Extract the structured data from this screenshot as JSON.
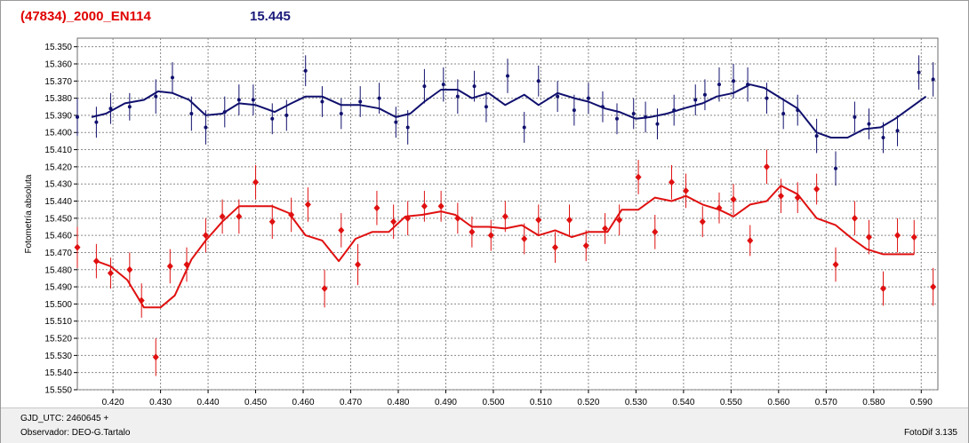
{
  "header": {
    "object_name": "(47834)_2000_EN114",
    "mean_magnitude": "15.445"
  },
  "footer": {
    "gjd_label": "GJD_UTC: 2460645 +",
    "observer_label": "Observador: DEO-G.Tartalo",
    "app_version": "FotoDif 3.135"
  },
  "colors": {
    "title_red": "#e00000",
    "blue_series": "#10106e",
    "red_series": "#e01010",
    "grid": "#8a8a8a"
  },
  "chart_data": {
    "type": "scatter",
    "ylabel": "Fotometría absoluta",
    "xlabel": "",
    "xlim": [
      0.4125,
      0.5935
    ],
    "ylim": [
      15.345,
      15.55
    ],
    "y_inverted": true,
    "grid": true,
    "x_ticks": [
      "0.420",
      "0.430",
      "0.440",
      "0.450",
      "0.460",
      "0.470",
      "0.480",
      "0.490",
      "0.500",
      "0.510",
      "0.520",
      "0.530",
      "0.540",
      "0.550",
      "0.560",
      "0.570",
      "0.580",
      "0.590"
    ],
    "y_ticks": [
      "15.350",
      "15.360",
      "15.370",
      "15.380",
      "15.390",
      "15.400",
      "15.410",
      "15.420",
      "15.430",
      "15.440",
      "15.450",
      "15.460",
      "15.470",
      "15.480",
      "15.490",
      "15.500",
      "15.510",
      "15.520",
      "15.530",
      "15.540",
      "15.550"
    ],
    "series": [
      {
        "color": "#10106e",
        "marker": "dot",
        "points": [
          [
            0.4125,
            15.391,
            0.011
          ],
          [
            0.4165,
            15.394,
            0.009
          ],
          [
            0.4195,
            15.386,
            0.009
          ],
          [
            0.4235,
            15.385,
            0.008
          ],
          [
            0.429,
            15.379,
            0.01
          ],
          [
            0.4325,
            15.368,
            0.009
          ],
          [
            0.4365,
            15.389,
            0.01
          ],
          [
            0.4395,
            15.397,
            0.01
          ],
          [
            0.4435,
            15.388,
            0.009
          ],
          [
            0.4465,
            15.381,
            0.009
          ],
          [
            0.4495,
            15.381,
            0.009
          ],
          [
            0.4535,
            15.392,
            0.009
          ],
          [
            0.4565,
            15.39,
            0.009
          ],
          [
            0.4605,
            15.364,
            0.009
          ],
          [
            0.464,
            15.382,
            0.009
          ],
          [
            0.468,
            15.389,
            0.009
          ],
          [
            0.472,
            15.382,
            0.009
          ],
          [
            0.476,
            15.38,
            0.009
          ],
          [
            0.4795,
            15.394,
            0.009
          ],
          [
            0.482,
            15.397,
            0.01
          ],
          [
            0.4855,
            15.373,
            0.01
          ],
          [
            0.4895,
            15.372,
            0.01
          ],
          [
            0.4925,
            15.379,
            0.01
          ],
          [
            0.496,
            15.373,
            0.009
          ],
          [
            0.4985,
            15.385,
            0.009
          ],
          [
            0.503,
            15.367,
            0.01
          ],
          [
            0.5065,
            15.397,
            0.009
          ],
          [
            0.5095,
            15.37,
            0.009
          ],
          [
            0.5135,
            15.379,
            0.009
          ],
          [
            0.517,
            15.387,
            0.009
          ],
          [
            0.52,
            15.38,
            0.009
          ],
          [
            0.523,
            15.385,
            0.009
          ],
          [
            0.526,
            15.392,
            0.009
          ],
          [
            0.5295,
            15.389,
            0.009
          ],
          [
            0.532,
            15.391,
            0.009
          ],
          [
            0.5345,
            15.395,
            0.009
          ],
          [
            0.538,
            15.387,
            0.009
          ],
          [
            0.5425,
            15.381,
            0.009
          ],
          [
            0.5445,
            15.378,
            0.009
          ],
          [
            0.5475,
            15.372,
            0.01
          ],
          [
            0.5505,
            15.37,
            0.01
          ],
          [
            0.5535,
            15.372,
            0.01
          ],
          [
            0.5575,
            15.38,
            0.009
          ],
          [
            0.561,
            15.389,
            0.009
          ],
          [
            0.564,
            15.387,
            0.009
          ],
          [
            0.568,
            15.402,
            0.01
          ],
          [
            0.572,
            15.421,
            0.01
          ],
          [
            0.576,
            15.391,
            0.009
          ],
          [
            0.579,
            15.395,
            0.009
          ],
          [
            0.582,
            15.403,
            0.009
          ],
          [
            0.585,
            15.399,
            0.009
          ],
          [
            0.5895,
            15.365,
            0.01
          ],
          [
            0.5925,
            15.369,
            0.01
          ]
        ],
        "fit": [
          [
            0.4155,
            15.391
          ],
          [
            0.4185,
            15.389
          ],
          [
            0.4225,
            15.383
          ],
          [
            0.4265,
            15.381
          ],
          [
            0.4295,
            15.376
          ],
          [
            0.4325,
            15.377
          ],
          [
            0.436,
            15.381
          ],
          [
            0.4395,
            15.39
          ],
          [
            0.443,
            15.389
          ],
          [
            0.4465,
            15.383
          ],
          [
            0.45,
            15.384
          ],
          [
            0.454,
            15.388
          ],
          [
            0.4575,
            15.383
          ],
          [
            0.4605,
            15.379
          ],
          [
            0.464,
            15.379
          ],
          [
            0.468,
            15.384
          ],
          [
            0.472,
            15.384
          ],
          [
            0.476,
            15.386
          ],
          [
            0.4795,
            15.391
          ],
          [
            0.4825,
            15.389
          ],
          [
            0.4855,
            15.382
          ],
          [
            0.489,
            15.375
          ],
          [
            0.4925,
            15.375
          ],
          [
            0.4955,
            15.38
          ],
          [
            0.499,
            15.377
          ],
          [
            0.5025,
            15.384
          ],
          [
            0.5065,
            15.378
          ],
          [
            0.5095,
            15.384
          ],
          [
            0.5135,
            15.377
          ],
          [
            0.517,
            15.38
          ],
          [
            0.52,
            15.382
          ],
          [
            0.5235,
            15.386
          ],
          [
            0.5265,
            15.388
          ],
          [
            0.53,
            15.392
          ],
          [
            0.533,
            15.391
          ],
          [
            0.5365,
            15.389
          ],
          [
            0.54,
            15.386
          ],
          [
            0.544,
            15.383
          ],
          [
            0.547,
            15.379
          ],
          [
            0.5505,
            15.377
          ],
          [
            0.554,
            15.372
          ],
          [
            0.557,
            15.374
          ],
          [
            0.5605,
            15.38
          ],
          [
            0.564,
            15.386
          ],
          [
            0.568,
            15.4
          ],
          [
            0.571,
            15.403
          ],
          [
            0.5745,
            15.403
          ],
          [
            0.578,
            15.398
          ],
          [
            0.5815,
            15.397
          ],
          [
            0.5845,
            15.392
          ],
          [
            0.588,
            15.385
          ],
          [
            0.591,
            15.379
          ]
        ]
      },
      {
        "color": "#e01010",
        "marker": "diamond",
        "points": [
          [
            0.4125,
            15.467,
            0.012
          ],
          [
            0.4165,
            15.475,
            0.01
          ],
          [
            0.4195,
            15.482,
            0.009
          ],
          [
            0.4235,
            15.48,
            0.01
          ],
          [
            0.426,
            15.498,
            0.01
          ],
          [
            0.429,
            15.531,
            0.011
          ],
          [
            0.432,
            15.478,
            0.01
          ],
          [
            0.4355,
            15.477,
            0.01
          ],
          [
            0.4395,
            15.46,
            0.01
          ],
          [
            0.443,
            15.449,
            0.01
          ],
          [
            0.4465,
            15.449,
            0.01
          ],
          [
            0.45,
            15.429,
            0.01
          ],
          [
            0.4535,
            15.452,
            0.01
          ],
          [
            0.4575,
            15.448,
            0.01
          ],
          [
            0.461,
            15.442,
            0.01
          ],
          [
            0.4645,
            15.491,
            0.011
          ],
          [
            0.468,
            15.457,
            0.01
          ],
          [
            0.4715,
            15.477,
            0.012
          ],
          [
            0.4755,
            15.444,
            0.01
          ],
          [
            0.479,
            15.452,
            0.01
          ],
          [
            0.482,
            15.45,
            0.01
          ],
          [
            0.4855,
            15.443,
            0.009
          ],
          [
            0.489,
            15.443,
            0.009
          ],
          [
            0.4925,
            15.45,
            0.009
          ],
          [
            0.4955,
            15.458,
            0.009
          ],
          [
            0.4995,
            15.46,
            0.009
          ],
          [
            0.5025,
            15.449,
            0.009
          ],
          [
            0.5065,
            15.462,
            0.009
          ],
          [
            0.5095,
            15.451,
            0.009
          ],
          [
            0.513,
            15.467,
            0.009
          ],
          [
            0.516,
            15.451,
            0.009
          ],
          [
            0.5195,
            15.466,
            0.009
          ],
          [
            0.5235,
            15.456,
            0.009
          ],
          [
            0.5265,
            15.451,
            0.009
          ],
          [
            0.5305,
            15.426,
            0.01
          ],
          [
            0.534,
            15.458,
            0.01
          ],
          [
            0.5375,
            15.429,
            0.01
          ],
          [
            0.5405,
            15.434,
            0.01
          ],
          [
            0.544,
            15.452,
            0.009
          ],
          [
            0.5475,
            15.444,
            0.009
          ],
          [
            0.5505,
            15.439,
            0.009
          ],
          [
            0.554,
            15.463,
            0.009
          ],
          [
            0.5575,
            15.42,
            0.01
          ],
          [
            0.5605,
            15.437,
            0.01
          ],
          [
            0.564,
            15.438,
            0.009
          ],
          [
            0.568,
            15.433,
            0.009
          ],
          [
            0.572,
            15.477,
            0.01
          ],
          [
            0.576,
            15.45,
            0.01
          ],
          [
            0.579,
            15.461,
            0.01
          ],
          [
            0.582,
            15.491,
            0.01
          ],
          [
            0.585,
            15.46,
            0.01
          ],
          [
            0.5885,
            15.461,
            0.01
          ],
          [
            0.5925,
            15.49,
            0.011
          ]
        ],
        "fit": [
          [
            0.4165,
            15.475
          ],
          [
            0.4195,
            15.478
          ],
          [
            0.423,
            15.486
          ],
          [
            0.4265,
            15.502
          ],
          [
            0.43,
            15.502
          ],
          [
            0.433,
            15.495
          ],
          [
            0.4365,
            15.474
          ],
          [
            0.4395,
            15.463
          ],
          [
            0.443,
            15.452
          ],
          [
            0.4465,
            15.443
          ],
          [
            0.45,
            15.443
          ],
          [
            0.4535,
            15.443
          ],
          [
            0.457,
            15.447
          ],
          [
            0.4605,
            15.46
          ],
          [
            0.464,
            15.463
          ],
          [
            0.4675,
            15.475
          ],
          [
            0.471,
            15.462
          ],
          [
            0.4745,
            15.458
          ],
          [
            0.478,
            15.458
          ],
          [
            0.4815,
            15.449
          ],
          [
            0.485,
            15.448
          ],
          [
            0.489,
            15.446
          ],
          [
            0.492,
            15.448
          ],
          [
            0.4955,
            15.455
          ],
          [
            0.499,
            15.455
          ],
          [
            0.5025,
            15.456
          ],
          [
            0.506,
            15.454
          ],
          [
            0.5095,
            15.46
          ],
          [
            0.513,
            15.457
          ],
          [
            0.5165,
            15.461
          ],
          [
            0.52,
            15.458
          ],
          [
            0.524,
            15.458
          ],
          [
            0.527,
            15.445
          ],
          [
            0.5305,
            15.445
          ],
          [
            0.534,
            15.438
          ],
          [
            0.5375,
            15.44
          ],
          [
            0.5405,
            15.437
          ],
          [
            0.544,
            15.442
          ],
          [
            0.5475,
            15.445
          ],
          [
            0.5505,
            15.449
          ],
          [
            0.554,
            15.442
          ],
          [
            0.5575,
            15.44
          ],
          [
            0.5605,
            15.431
          ],
          [
            0.564,
            15.436
          ],
          [
            0.568,
            15.45
          ],
          [
            0.572,
            15.454
          ],
          [
            0.5755,
            15.462
          ],
          [
            0.5785,
            15.468
          ],
          [
            0.582,
            15.471
          ],
          [
            0.585,
            15.471
          ],
          [
            0.5885,
            15.471
          ]
        ]
      }
    ]
  }
}
